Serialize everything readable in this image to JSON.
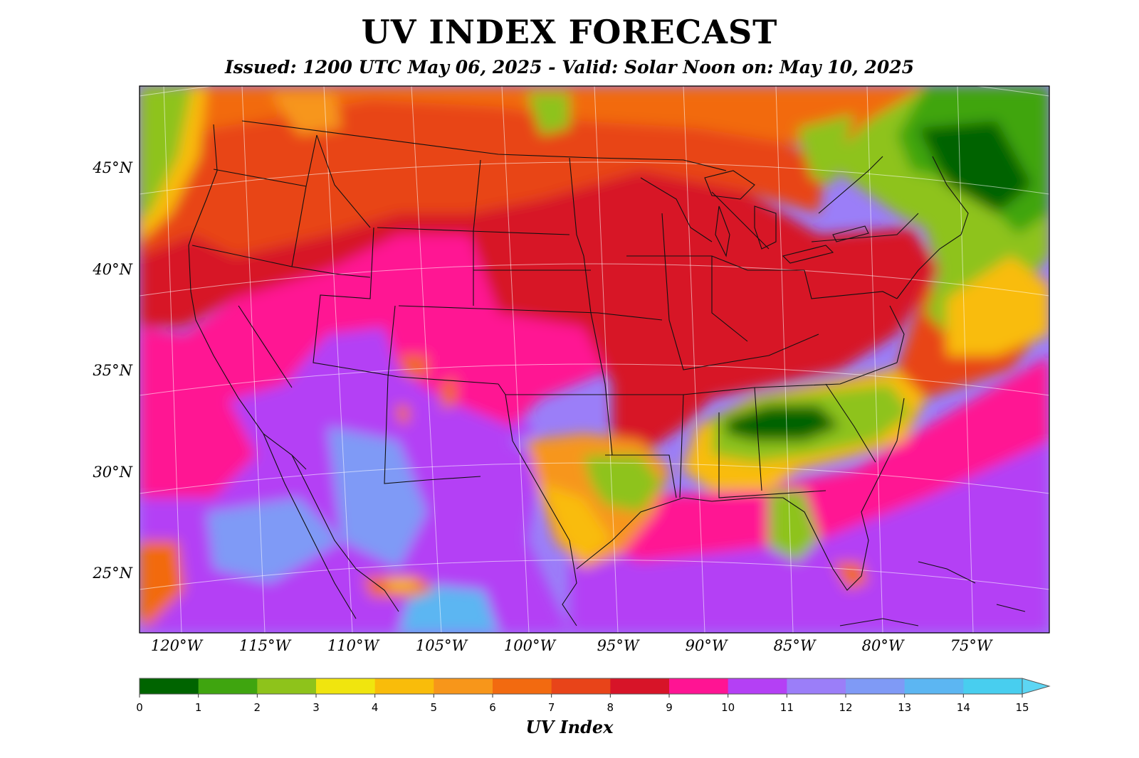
{
  "title": "UV INDEX FORECAST",
  "subtitle": "Issued: 1200 UTC May 06, 2025 - Valid: Solar Noon on: May 10, 2025",
  "colorbar_label": "UV Index",
  "latitude_labels": [
    {
      "text": "45°N",
      "lat": 45
    },
    {
      "text": "40°N",
      "lat": 40
    },
    {
      "text": "35°N",
      "lat": 35
    },
    {
      "text": "30°N",
      "lat": 30
    },
    {
      "text": "25°N",
      "lat": 25
    }
  ],
  "longitude_labels": [
    {
      "text": "120°W",
      "lon": -120
    },
    {
      "text": "115°W",
      "lon": -115
    },
    {
      "text": "110°W",
      "lon": -110
    },
    {
      "text": "105°W",
      "lon": -105
    },
    {
      "text": "100°W",
      "lon": -100
    },
    {
      "text": "95°W",
      "lon": -95
    },
    {
      "text": "90°W",
      "lon": -90
    },
    {
      "text": "85°W",
      "lon": -85
    },
    {
      "text": "80°W",
      "lon": -80
    },
    {
      "text": "75°W",
      "lon": -75
    }
  ],
  "colorbar": {
    "ticks": [
      "0",
      "1",
      "2",
      "3",
      "4",
      "5",
      "6",
      "7",
      "8",
      "9",
      "10",
      "11",
      "12",
      "13",
      "14",
      "15"
    ],
    "colors": [
      "#006400",
      "#3fa50f",
      "#8ec31b",
      "#f0e50e",
      "#f9bc0a",
      "#f7961a",
      "#f26a10",
      "#e84419",
      "#d71428",
      "#ff1493",
      "#b440f5",
      "#9b7ef8",
      "#7f9af6",
      "#5cb6f2",
      "#48ceef"
    ],
    "extend_arrow_color": "#5dd6f4"
  },
  "legend_placement": "bottom"
}
